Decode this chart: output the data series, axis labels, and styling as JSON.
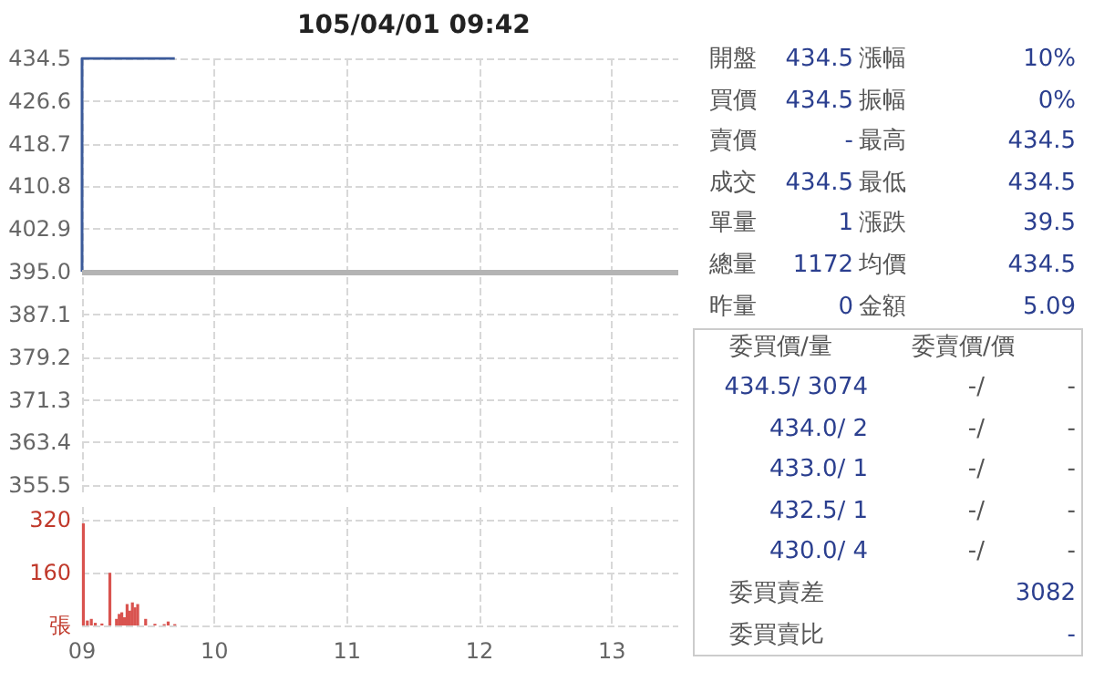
{
  "chart_data": [
    {
      "type": "line",
      "title": "105/04/01 09:42",
      "x": [
        9,
        9,
        9.7
      ],
      "xlim": [
        9,
        13.5
      ],
      "xticks": [
        9,
        10,
        11,
        12,
        13
      ],
      "ylim": [
        353.5,
        434.5
      ],
      "yticks": [
        {
          "value": 355.5,
          "label": "355.5"
        },
        {
          "value": 363.4,
          "label": "363.4"
        },
        {
          "value": 371.3,
          "label": "371.3"
        },
        {
          "value": 379.2,
          "label": "379.2"
        },
        {
          "value": 387.1,
          "label": "387.1"
        },
        {
          "value": 395,
          "label": "395.0"
        },
        {
          "value": 402.9,
          "label": "402.9"
        },
        {
          "value": 410.8,
          "label": "410.8"
        },
        {
          "value": 418.7,
          "label": "418.7"
        },
        {
          "value": 426.6,
          "label": "426.6"
        },
        {
          "value": 434.5,
          "label": "434.5"
        }
      ],
      "tick_labels": "y",
      "grid": true,
      "series": [
        {
          "color": "#3b5a9a",
          "values": [
            395,
            434.5,
            434.5
          ]
        }
      ],
      "ref_lines": [
        {
          "axis": "y",
          "value": 395,
          "color": "#b4b4b4"
        }
      ]
    },
    {
      "type": "bar",
      "x": [
        9.01,
        9.04,
        9.07,
        9.1,
        9.15,
        9.21,
        9.26,
        9.28,
        9.3,
        9.32,
        9.34,
        9.36,
        9.38,
        9.4,
        9.42,
        9.48,
        9.55,
        9.62,
        9.65,
        9.7
      ],
      "xlim": [
        9,
        13.5
      ],
      "xticks": [
        {
          "value": 9,
          "label": "09"
        },
        {
          "value": 10,
          "label": "10"
        },
        {
          "value": 11,
          "label": "11"
        },
        {
          "value": 12,
          "label": "12"
        },
        {
          "value": 13,
          "label": "13"
        }
      ],
      "ylim": [
        0,
        360
      ],
      "yticks": [
        {
          "value": 0,
          "label": "張"
        },
        160,
        320
      ],
      "grid": true,
      "series": [
        {
          "color": "#d9534f",
          "values": [
            310,
            15,
            20,
            8,
            6,
            160,
            20,
            35,
            40,
            25,
            65,
            45,
            70,
            55,
            65,
            20,
            5,
            4,
            12,
            4
          ]
        }
      ]
    },
    {
      "type": "other",
      "annotations": [
        "開盤",
        "434.5",
        "漲幅",
        "10%",
        "買價",
        "434.5",
        "振幅",
        "0%",
        "賣價",
        "-",
        "最高",
        "434.5",
        "成交",
        "434.5",
        "最低",
        "434.5",
        "單量",
        "1",
        "漲跌",
        "39.5",
        "總量",
        "1172",
        "均價",
        "434.5",
        "昨量",
        "0",
        "金額",
        "5.09",
        "委買價/量",
        "委賣價/價",
        "434.5/ 3074",
        "-/",
        "-",
        "434.0/ 2",
        "-/",
        "-",
        "433.0/ 1",
        "-/",
        "-",
        "432.5/ 1",
        "-/",
        "-",
        "430.0/ 4",
        "-/",
        "-",
        "委買賣差",
        "3082",
        "委買賣比",
        "-"
      ]
    }
  ]
}
